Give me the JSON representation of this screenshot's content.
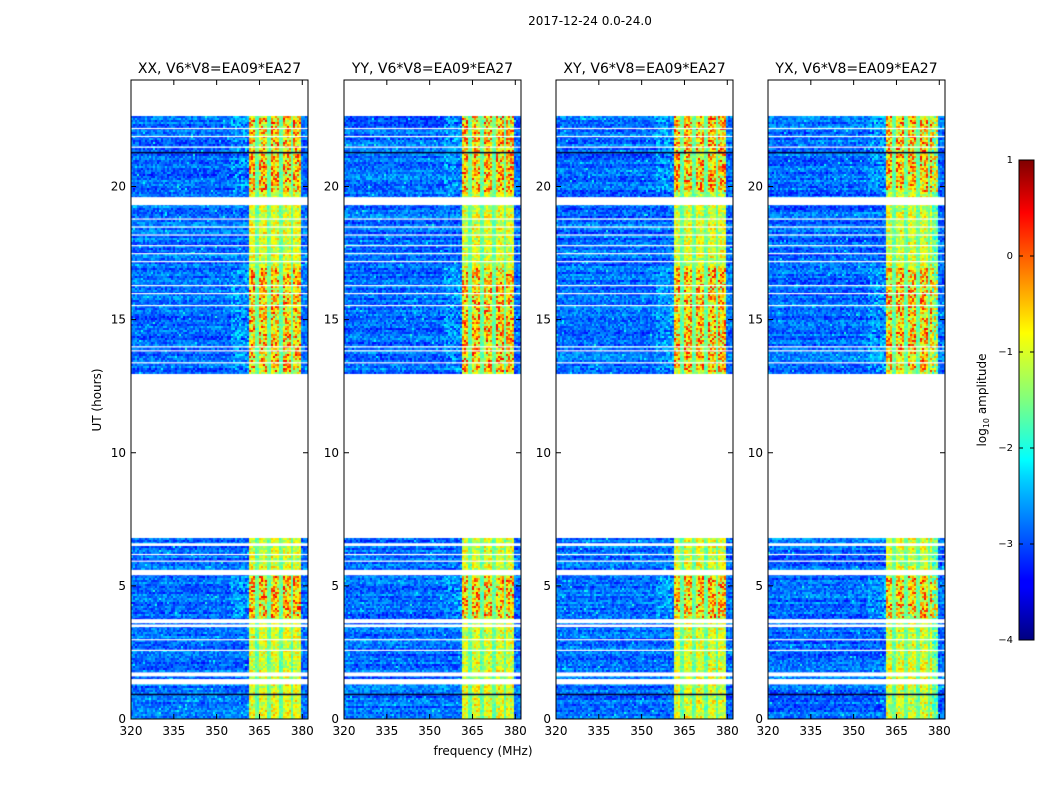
{
  "chart_data": {
    "type": "heatmap",
    "suptitle": "2017-12-24 0.0-24.0",
    "xlabel": "frequency (MHz)",
    "ylabel": "UT (hours)",
    "xlim": [
      320,
      382
    ],
    "ylim": [
      0,
      24
    ],
    "xticks": [
      "320",
      "335",
      "350",
      "365",
      "380"
    ],
    "xtick_values": [
      320,
      335,
      350,
      365,
      380
    ],
    "yticks": [
      "0",
      "5",
      "10",
      "15",
      "20"
    ],
    "ytick_values": [
      0,
      5,
      10,
      15,
      20
    ],
    "panels": [
      {
        "title": "XX, V6*V8=EA09*EA27"
      },
      {
        "title": "YY, V6*V8=EA09*EA27"
      },
      {
        "title": "XY, V6*V8=EA09*EA27"
      },
      {
        "title": "YX, V6*V8=EA09*EA27"
      }
    ],
    "data_time_ranges": [
      [
        0,
        6.8
      ],
      [
        13.0,
        22.7
      ]
    ],
    "flagged_time_ranges": [
      [
        1.3,
        1.5
      ],
      [
        1.6,
        1.75
      ],
      [
        3.45,
        3.55
      ],
      [
        3.6,
        3.75
      ],
      [
        5.4,
        5.6
      ],
      [
        6.5,
        6.6
      ],
      [
        19.3,
        19.6
      ]
    ],
    "thin_flagged_times": [
      2.6,
      3.0,
      5.95,
      6.2,
      13.4,
      13.85,
      14.0,
      15.55,
      16.0,
      16.3,
      17.2,
      17.5,
      17.8,
      18.2,
      18.5,
      18.8,
      21.5,
      21.9,
      22.2
    ],
    "rfi_band_MHz": [
      361,
      379
    ],
    "rfi_channel_edges_MHz": [
      364,
      368,
      372,
      376
    ],
    "colorbar": {
      "label": "log10 amplitude",
      "label_base": "log",
      "label_sub": "10",
      "label_tail": " amplitude",
      "range": [
        -4,
        1
      ],
      "ticks": [
        "1",
        "0",
        "−1",
        "−2",
        "−3",
        "−4"
      ],
      "tick_values": [
        1,
        0,
        -1,
        -2,
        -3,
        -4
      ]
    }
  }
}
